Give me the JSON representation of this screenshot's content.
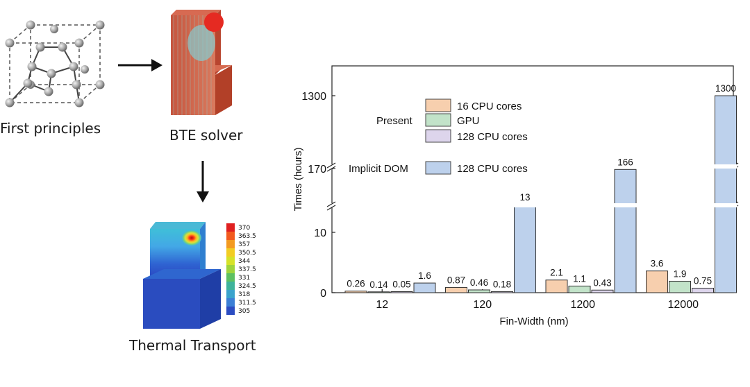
{
  "workflow": {
    "step1": "First principles",
    "step2": "BTE solver",
    "step3": "Thermal Transport",
    "colorbar_ticks": [
      "370",
      "363.5",
      "357",
      "350.5",
      "344",
      "337.5",
      "331",
      "324.5",
      "318",
      "311.5",
      "305"
    ],
    "colorbar_colors": [
      "#e02020",
      "#f25a1e",
      "#f39a20",
      "#f2cd23",
      "#d6e228",
      "#9fd43c",
      "#5dc062",
      "#3fb39b",
      "#3aa3cc",
      "#3b7fd6",
      "#2b4cc2"
    ]
  },
  "chart_data": {
    "type": "bar",
    "categories": [
      "12",
      "120",
      "1200",
      "12000"
    ],
    "xlabel": "Fin-Width (nm)",
    "ylabel": "Times (hours)",
    "y_ticks": [
      "0",
      "10",
      "170",
      "1300"
    ],
    "axis_breaks": [
      10,
      170
    ],
    "legend_groups": [
      {
        "label": "Present",
        "entries": [
          0,
          1,
          2
        ]
      },
      {
        "label": "Implicit DOM",
        "entries": [
          3
        ]
      }
    ],
    "series": [
      {
        "name": "16 CPU cores",
        "group": "Present",
        "color": "#f7cfae",
        "values": [
          0.26,
          0.87,
          2.1,
          3.6
        ],
        "labels": [
          "0.26",
          "0.87",
          "2.1",
          "3.6"
        ]
      },
      {
        "name": "GPU",
        "group": "Present",
        "color": "#c2e3c9",
        "values": [
          0.14,
          0.46,
          1.1,
          1.9
        ],
        "labels": [
          "0.14",
          "0.46",
          "1.1",
          "1.9"
        ]
      },
      {
        "name": "128 CPU cores",
        "group": "Present",
        "color": "#ddd5ec",
        "values": [
          0.05,
          0.18,
          0.43,
          0.75
        ],
        "labels": [
          "0.05",
          "0.18",
          "0.43",
          "0.75"
        ]
      },
      {
        "name": "128 CPU cores",
        "group": "Implicit DOM",
        "color": "#bdd1ec",
        "values": [
          1.6,
          13,
          166,
          1300
        ],
        "labels": [
          "1.6",
          "13",
          "166",
          "1300"
        ]
      }
    ]
  }
}
